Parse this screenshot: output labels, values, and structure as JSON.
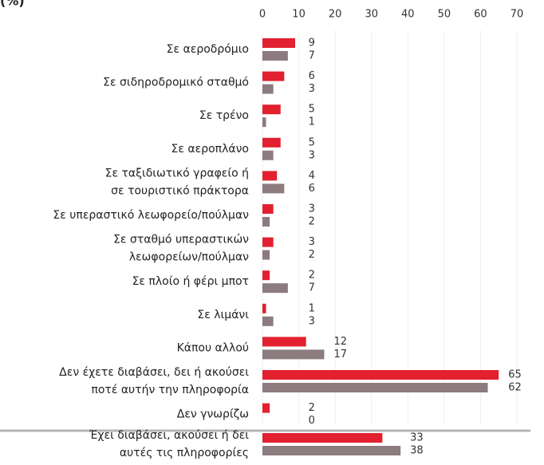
{
  "chart_data": {
    "type": "bar",
    "orientation": "horizontal",
    "title": "(%)",
    "categories": [
      [
        "Σε αεροδρόμιο"
      ],
      [
        "Σε σιδηροδρομικό σταθμό"
      ],
      [
        "Σε τρένο"
      ],
      [
        "Σε αεροπλάνο"
      ],
      [
        "Σε ταξιδιωτικό γραφείο ή",
        "σε τουριστικό πράκτορα"
      ],
      [
        "Σε υπεραστικό λεωφορείο/πούλμαν"
      ],
      [
        "Σε σταθμό υπεραστικών",
        "λεωφορείων/πούλμαν"
      ],
      [
        "Σε πλοίο ή φέρι μποτ"
      ],
      [
        "Σε λιμάνι"
      ],
      [
        "Κάπου αλλού"
      ],
      [
        "Δεν έχετε διαβάσει, δει ή ακούσει",
        "ποτέ αυτήν την πληροφορία"
      ],
      [
        "Δεν γνωρίζω"
      ],
      [
        "Έχει διαβάσει, ακούσει ή δει",
        "αυτές τις πληροφορίες"
      ]
    ],
    "series": [
      {
        "color": "#e2202f",
        "values": [
          9,
          6,
          5,
          5,
          4,
          3,
          3,
          2,
          1,
          12,
          65,
          2,
          33
        ]
      },
      {
        "color": "#8c7b7f",
        "values": [
          7,
          3,
          1,
          3,
          6,
          2,
          2,
          7,
          3,
          17,
          62,
          0,
          38
        ]
      }
    ],
    "xlim": [
      0,
      70
    ],
    "xticks": [
      0,
      10,
      20,
      30,
      40,
      50,
      60,
      70
    ],
    "grid": true
  }
}
